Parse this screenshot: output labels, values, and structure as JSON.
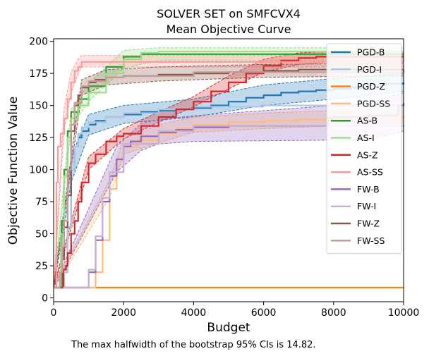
{
  "chart_data": {
    "type": "line",
    "title": "SOLVER SET on SMFCVX4",
    "subtitle": "Mean Objective Curve",
    "xlabel": "Budget",
    "ylabel": "Objective Function Value",
    "xlim": [
      0,
      10000
    ],
    "ylim": [
      -3,
      202
    ],
    "xticks": [
      "0",
      "2000",
      "4000",
      "6000",
      "8000",
      "10000"
    ],
    "xtick_values": [
      0,
      2000,
      4000,
      6000,
      8000,
      10000
    ],
    "yticks": [
      "0",
      "25",
      "50",
      "75",
      "100",
      "125",
      "150",
      "175",
      "200"
    ],
    "ytick_values": [
      0,
      25,
      50,
      75,
      100,
      125,
      150,
      175,
      200
    ],
    "grid": false,
    "legend_position": "top-right",
    "footnote": "The max halfwidth of the bootstrap 95% CIs is 14.82.",
    "series": [
      {
        "name": "PGD-B",
        "color": "#1f77b4",
        "ci": true,
        "points": [
          [
            0,
            8
          ],
          [
            250,
            8
          ],
          [
            300,
            20
          ],
          [
            400,
            55
          ],
          [
            500,
            100
          ],
          [
            600,
            118
          ],
          [
            700,
            125
          ],
          [
            800,
            130
          ],
          [
            1000,
            135
          ],
          [
            1200,
            138
          ],
          [
            1500,
            141
          ],
          [
            2000,
            143
          ],
          [
            2500,
            145
          ],
          [
            3000,
            146
          ],
          [
            3500,
            147
          ],
          [
            4000,
            148
          ],
          [
            4500,
            150
          ],
          [
            5000,
            153
          ],
          [
            5500,
            156
          ],
          [
            6000,
            158
          ],
          [
            6500,
            160
          ],
          [
            7000,
            161
          ],
          [
            7500,
            162
          ],
          [
            8000,
            163
          ],
          [
            8500,
            164
          ],
          [
            9000,
            166
          ],
          [
            9500,
            167
          ],
          [
            10000,
            168
          ]
        ],
        "lo": [
          [
            0,
            7
          ],
          [
            500,
            90
          ],
          [
            1000,
            127
          ],
          [
            2000,
            136
          ],
          [
            4000,
            141
          ],
          [
            6000,
            150
          ],
          [
            8000,
            155
          ],
          [
            10000,
            161
          ]
        ],
        "hi": [
          [
            0,
            9
          ],
          [
            500,
            110
          ],
          [
            1000,
            143
          ],
          [
            2000,
            150
          ],
          [
            4000,
            155
          ],
          [
            6000,
            166
          ],
          [
            8000,
            171
          ],
          [
            10000,
            175
          ]
        ]
      },
      {
        "name": "PGD-I",
        "color": "#aec7e8",
        "points": [
          [
            0,
            8
          ],
          [
            250,
            8
          ],
          [
            300,
            20
          ],
          [
            400,
            55
          ],
          [
            500,
            100
          ],
          [
            600,
            118
          ],
          [
            700,
            128
          ],
          [
            800,
            133
          ],
          [
            1000,
            137
          ],
          [
            1500,
            141
          ],
          [
            2000,
            144
          ],
          [
            3000,
            147
          ],
          [
            4000,
            149
          ],
          [
            6000,
            150
          ],
          [
            8000,
            150
          ],
          [
            10000,
            150
          ]
        ]
      },
      {
        "name": "PGD-Z",
        "color": "#ff7f0e",
        "points": [
          [
            0,
            8
          ],
          [
            10000,
            8
          ]
        ]
      },
      {
        "name": "PGD-SS",
        "color": "#ffbb78",
        "ci": true,
        "points": [
          [
            0,
            8
          ],
          [
            1000,
            8
          ],
          [
            1200,
            20
          ],
          [
            1400,
            45
          ],
          [
            1600,
            85
          ],
          [
            1800,
            108
          ],
          [
            2000,
            118
          ],
          [
            2400,
            123
          ],
          [
            3000,
            128
          ],
          [
            3500,
            132
          ],
          [
            4000,
            135
          ],
          [
            5000,
            137
          ],
          [
            6000,
            138
          ],
          [
            7000,
            139
          ],
          [
            8000,
            140
          ],
          [
            9000,
            141
          ],
          [
            10000,
            142
          ]
        ],
        "lo": [
          [
            0,
            7
          ],
          [
            1600,
            78
          ],
          [
            2000,
            112
          ],
          [
            3000,
            121
          ],
          [
            4000,
            129
          ],
          [
            6000,
            132
          ],
          [
            8000,
            134
          ],
          [
            10000,
            136
          ]
        ],
        "hi": [
          [
            0,
            9
          ],
          [
            1600,
            92
          ],
          [
            2000,
            124
          ],
          [
            3000,
            135
          ],
          [
            4000,
            141
          ],
          [
            6000,
            144
          ],
          [
            8000,
            146
          ],
          [
            10000,
            148
          ]
        ]
      },
      {
        "name": "AS-B",
        "color": "#2ca02c",
        "points": [
          [
            0,
            8
          ],
          [
            200,
            8
          ],
          [
            230,
            60
          ],
          [
            300,
            100
          ],
          [
            400,
            130
          ],
          [
            500,
            145
          ],
          [
            700,
            155
          ],
          [
            1000,
            165
          ],
          [
            1500,
            180
          ],
          [
            2000,
            188
          ],
          [
            2500,
            190
          ],
          [
            3000,
            190
          ],
          [
            10000,
            190
          ]
        ]
      },
      {
        "name": "AS-I",
        "color": "#98df8a",
        "ci": true,
        "points": [
          [
            0,
            8
          ],
          [
            180,
            8
          ],
          [
            210,
            50
          ],
          [
            300,
            95
          ],
          [
            400,
            125
          ],
          [
            500,
            140
          ],
          [
            700,
            150
          ],
          [
            1000,
            160
          ],
          [
            1500,
            175
          ],
          [
            2000,
            186
          ],
          [
            2500,
            191
          ],
          [
            3000,
            192
          ],
          [
            10000,
            192
          ]
        ],
        "lo": [
          [
            0,
            7
          ],
          [
            500,
            133
          ],
          [
            1000,
            153
          ],
          [
            2000,
            179
          ],
          [
            3000,
            185
          ],
          [
            10000,
            185
          ]
        ],
        "hi": [
          [
            0,
            9
          ],
          [
            500,
            147
          ],
          [
            1000,
            167
          ],
          [
            2000,
            193
          ],
          [
            3000,
            195
          ],
          [
            10000,
            195
          ]
        ]
      },
      {
        "name": "AS-Z",
        "color": "#d62728",
        "ci": true,
        "points": [
          [
            0,
            8
          ],
          [
            250,
            8
          ],
          [
            280,
            22
          ],
          [
            350,
            25
          ],
          [
            400,
            35
          ],
          [
            500,
            50
          ],
          [
            600,
            60
          ],
          [
            700,
            75
          ],
          [
            800,
            90
          ],
          [
            1000,
            105
          ],
          [
            1200,
            112
          ],
          [
            1500,
            122
          ],
          [
            1800,
            126
          ],
          [
            2000,
            128
          ],
          [
            2500,
            134
          ],
          [
            3000,
            141
          ],
          [
            3500,
            147
          ],
          [
            4000,
            153
          ],
          [
            4500,
            161
          ],
          [
            5000,
            168
          ],
          [
            5500,
            175
          ],
          [
            6000,
            181
          ],
          [
            6500,
            185
          ],
          [
            7000,
            187
          ],
          [
            7500,
            188
          ],
          [
            8000,
            188
          ],
          [
            10000,
            188
          ]
        ],
        "lo": [
          [
            0,
            7
          ],
          [
            1000,
            100
          ],
          [
            2000,
            124
          ],
          [
            3000,
            137
          ],
          [
            4000,
            149
          ],
          [
            5000,
            163
          ],
          [
            6000,
            176
          ],
          [
            7000,
            182
          ],
          [
            8000,
            184
          ],
          [
            10000,
            184
          ]
        ],
        "hi": [
          [
            0,
            9
          ],
          [
            1000,
            110
          ],
          [
            2000,
            132
          ],
          [
            3000,
            145
          ],
          [
            4000,
            157
          ],
          [
            5000,
            173
          ],
          [
            6000,
            186
          ],
          [
            7000,
            191
          ],
          [
            8000,
            192
          ],
          [
            10000,
            192
          ]
        ]
      },
      {
        "name": "AS-SS",
        "color": "#ff9896",
        "ci": true,
        "points": [
          [
            0,
            8
          ],
          [
            60,
            8
          ],
          [
            80,
            90
          ],
          [
            120,
            118
          ],
          [
            200,
            128
          ],
          [
            300,
            140
          ],
          [
            400,
            155
          ],
          [
            500,
            168
          ],
          [
            600,
            177
          ],
          [
            700,
            180
          ],
          [
            800,
            184
          ],
          [
            10000,
            184
          ]
        ],
        "lo": [
          [
            0,
            7
          ],
          [
            300,
            132
          ],
          [
            500,
            160
          ],
          [
            700,
            174
          ],
          [
            800,
            180
          ],
          [
            10000,
            180
          ]
        ],
        "hi": [
          [
            0,
            9
          ],
          [
            300,
            148
          ],
          [
            500,
            176
          ],
          [
            700,
            186
          ],
          [
            800,
            189
          ],
          [
            10000,
            189
          ]
        ]
      },
      {
        "name": "FW-B",
        "color": "#9467bd",
        "ci": true,
        "points": [
          [
            0,
            8
          ],
          [
            900,
            8
          ],
          [
            1000,
            20
          ],
          [
            1200,
            45
          ],
          [
            1400,
            75
          ],
          [
            1600,
            95
          ],
          [
            1800,
            108
          ],
          [
            2000,
            118
          ],
          [
            2200,
            122
          ],
          [
            2500,
            126
          ],
          [
            3000,
            129
          ],
          [
            3500,
            131
          ],
          [
            4000,
            133
          ],
          [
            5000,
            134
          ],
          [
            6000,
            134
          ],
          [
            7000,
            134
          ],
          [
            7800,
            134
          ],
          [
            7850,
            140
          ],
          [
            8000,
            141
          ],
          [
            9000,
            142
          ],
          [
            9800,
            143
          ],
          [
            9850,
            150
          ],
          [
            10000,
            152
          ]
        ],
        "lo": [
          [
            0,
            7
          ],
          [
            1800,
            98
          ],
          [
            2500,
            115
          ],
          [
            3000,
            120
          ],
          [
            4000,
            122
          ],
          [
            8000,
            123
          ],
          [
            9000,
            123
          ],
          [
            10000,
            130
          ]
        ],
        "hi": [
          [
            0,
            9
          ],
          [
            1800,
            118
          ],
          [
            2500,
            136
          ],
          [
            3000,
            139
          ],
          [
            4000,
            142
          ],
          [
            8000,
            150
          ],
          [
            9000,
            152
          ],
          [
            10000,
            160
          ]
        ]
      },
      {
        "name": "FW-I",
        "color": "#c5b0d5",
        "points": [
          [
            0,
            8
          ],
          [
            900,
            8
          ],
          [
            1000,
            22
          ],
          [
            1200,
            48
          ],
          [
            1400,
            78
          ],
          [
            1600,
            98
          ],
          [
            2000,
            120
          ],
          [
            3000,
            130
          ],
          [
            4000,
            134
          ],
          [
            10000,
            135
          ]
        ]
      },
      {
        "name": "FW-Z",
        "color": "#8c564b",
        "ci": true,
        "points": [
          [
            0,
            8
          ],
          [
            200,
            8
          ],
          [
            250,
            30
          ],
          [
            300,
            55
          ],
          [
            400,
            80
          ],
          [
            500,
            130
          ],
          [
            600,
            150
          ],
          [
            700,
            158
          ],
          [
            800,
            164
          ],
          [
            1000,
            168
          ],
          [
            1200,
            170
          ],
          [
            1500,
            172
          ],
          [
            2000,
            173
          ],
          [
            3000,
            174
          ],
          [
            4000,
            175
          ],
          [
            5000,
            176
          ],
          [
            6000,
            177
          ],
          [
            7000,
            178
          ],
          [
            8000,
            178
          ],
          [
            10000,
            178
          ]
        ],
        "lo": [
          [
            0,
            7
          ],
          [
            800,
            158
          ],
          [
            1500,
            166
          ],
          [
            3000,
            169
          ],
          [
            6000,
            172
          ],
          [
            10000,
            173
          ]
        ],
        "hi": [
          [
            0,
            9
          ],
          [
            800,
            170
          ],
          [
            1500,
            178
          ],
          [
            3000,
            180
          ],
          [
            6000,
            182
          ],
          [
            10000,
            183
          ]
        ]
      },
      {
        "name": "FW-SS",
        "color": "#c49c94",
        "points": [
          [
            0,
            8
          ],
          [
            150,
            8
          ],
          [
            180,
            20
          ],
          [
            250,
            40
          ],
          [
            300,
            60
          ],
          [
            400,
            100
          ],
          [
            500,
            135
          ],
          [
            600,
            152
          ],
          [
            800,
            165
          ],
          [
            1000,
            169
          ],
          [
            1500,
            172
          ],
          [
            2000,
            173
          ],
          [
            4000,
            176
          ],
          [
            10000,
            178
          ]
        ]
      }
    ]
  }
}
